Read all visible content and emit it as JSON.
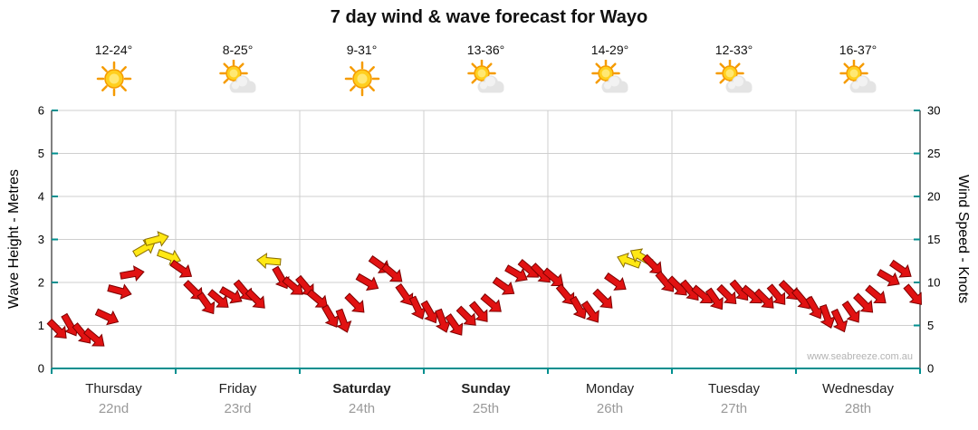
{
  "title": "7 day wind & wave forecast for Wayo",
  "watermark": "www.seabreeze.com.au",
  "left_axis": {
    "label": "Wave Height - Metres",
    "min": 0,
    "max": 6,
    "ticks": [
      0,
      1,
      2,
      3,
      4,
      5,
      6
    ]
  },
  "right_axis": {
    "label": "Wind Speed - Knots",
    "min": 0,
    "max": 30,
    "ticks": [
      0,
      5,
      10,
      15,
      20,
      25,
      30
    ]
  },
  "days": [
    {
      "name": "Thursday",
      "date": "22nd",
      "temp": "12-24°",
      "icon": "sunny",
      "bold": false
    },
    {
      "name": "Friday",
      "date": "23rd",
      "temp": "8-25°",
      "icon": "partly-cloudy",
      "bold": false
    },
    {
      "name": "Saturday",
      "date": "24th",
      "temp": "9-31°",
      "icon": "sunny",
      "bold": true
    },
    {
      "name": "Sunday",
      "date": "25th",
      "temp": "13-36°",
      "icon": "partly-cloudy",
      "bold": true
    },
    {
      "name": "Monday",
      "date": "26th",
      "temp": "14-29°",
      "icon": "partly-cloudy",
      "bold": false
    },
    {
      "name": "Tuesday",
      "date": "27th",
      "temp": "12-33°",
      "icon": "partly-cloudy",
      "bold": false
    },
    {
      "name": "Wednesday",
      "date": "28th",
      "temp": "16-37°",
      "icon": "partly-cloudy",
      "bold": false
    }
  ],
  "colors": {
    "arrow_red": "#e11212",
    "arrow_red_outline": "#7e0000",
    "arrow_yellow": "#ffe814",
    "arrow_yellow_outline": "#8a6d00",
    "axis_teal": "#008f8f",
    "grid": "#cfcfcf",
    "axis_black": "#000000",
    "date_gray": "#999999"
  },
  "chart_data": {
    "type": "wind-arrows",
    "x_unit": "days",
    "samples_per_day": 10,
    "metres_axis_range": [
      0,
      6
    ],
    "knots_axis_range": [
      0,
      30
    ],
    "grid": true,
    "series": [
      {
        "day": "Thursday",
        "knots": [
          4.5,
          5,
          4,
          3.5,
          6,
          9,
          11,
          14,
          15,
          13
        ],
        "dir_deg": [
          45,
          60,
          50,
          40,
          25,
          15,
          -10,
          -30,
          -15,
          20
        ],
        "yellow_indices": [
          7,
          8,
          9
        ]
      },
      {
        "day": "Friday",
        "knots": [
          11.5,
          9,
          7.5,
          8,
          8.5,
          9,
          8,
          12.5,
          10.5,
          9.5
        ],
        "dir_deg": [
          35,
          45,
          55,
          40,
          30,
          50,
          45,
          185,
          60,
          40
        ],
        "yellow_indices": [
          7
        ]
      },
      {
        "day": "Saturday",
        "knots": [
          9.5,
          8,
          6,
          5.5,
          7.5,
          10,
          12,
          11,
          8.5,
          7
        ],
        "dir_deg": [
          50,
          40,
          60,
          70,
          45,
          30,
          35,
          40,
          55,
          65
        ],
        "yellow_indices": []
      },
      {
        "day": "Sunday",
        "knots": [
          6.5,
          5.5,
          5,
          6,
          6.5,
          7.5,
          9.5,
          11,
          11.5,
          11
        ],
        "dir_deg": [
          60,
          70,
          55,
          45,
          50,
          40,
          35,
          30,
          40,
          45
        ],
        "yellow_indices": []
      },
      {
        "day": "Monday",
        "knots": [
          10.5,
          8.5,
          7,
          6.5,
          8,
          10,
          12.5,
          13,
          12,
          10
        ],
        "dir_deg": [
          40,
          50,
          60,
          55,
          45,
          35,
          200,
          210,
          45,
          50
        ],
        "yellow_indices": [
          6,
          7
        ]
      },
      {
        "day": "Tuesday",
        "knots": [
          9.5,
          9,
          8.5,
          8,
          8.5,
          9,
          8.5,
          8,
          8.5,
          9
        ],
        "dir_deg": [
          45,
          50,
          40,
          55,
          45,
          50,
          40,
          45,
          50,
          45
        ],
        "yellow_indices": []
      },
      {
        "day": "Wednesday",
        "knots": [
          8,
          7,
          6,
          5.5,
          6.5,
          7.5,
          8.5,
          10.5,
          11.5,
          8.5
        ],
        "dir_deg": [
          50,
          60,
          70,
          65,
          55,
          45,
          40,
          30,
          35,
          50
        ],
        "yellow_indices": []
      }
    ]
  }
}
